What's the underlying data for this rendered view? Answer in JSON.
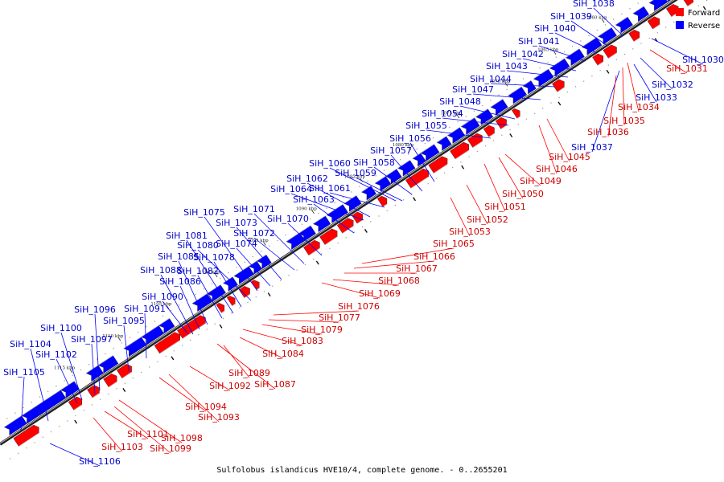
{
  "caption": "Sulfolobus islandicus HVE10/4, complete genome. - 0..2655201",
  "legend": [
    {
      "label": "Forward",
      "color": "#ff0000"
    },
    {
      "label": "Reverse",
      "color": "#0000ff"
    }
  ],
  "colors": {
    "forward": "#ff0000",
    "reverse": "#0000ff",
    "forward_label": "#cc0000",
    "reverse_label": "#0000cc",
    "backbone": "#555555"
  },
  "scale_ticks": [
    "1050 kbp",
    "1055 kbp",
    "1060 kbp",
    "1065 kbp",
    "1070 kbp",
    "1075 kbp",
    "1080 kbp",
    "1085 kbp",
    "1090 kbp",
    "1095 kbp",
    "1100 kbp",
    "1105 kbp",
    "1110 kbp",
    "1115 kbp"
  ],
  "reverse_genes": [
    "SiH_1038",
    "SiH_1039",
    "SiH_1040",
    "SiH_1041",
    "SiH_1042",
    "SiH_1043",
    "SiH_1044",
    "SiH_1047",
    "SiH_1048",
    "SiH_1054",
    "SiH_1055",
    "SiH_1056",
    "SiH_1057",
    "SiH_1058",
    "SiH_1059",
    "SiH_1060",
    "SiH_1061",
    "SiH_1062",
    "SiH_1063",
    "SiH_1064",
    "SiH_1070",
    "SiH_1071",
    "SiH_1072",
    "SiH_1073",
    "SiH_1074",
    "SiH_1075",
    "SiH_1078",
    "SiH_1080",
    "SiH_1081",
    "SiH_1082",
    "SiH_1085",
    "SiH_1086",
    "SiH_1088",
    "SiH_1090",
    "SiH_1091",
    "SiH_1095",
    "SiH_1096",
    "SiH_1097",
    "SiH_1100",
    "SiH_1102",
    "SiH_1104",
    "SiH_1105",
    "SiH_1030",
    "SiH_1032",
    "SiH_1033",
    "SiH_1037",
    "SiH_1106"
  ],
  "forward_genes": [
    "SiH_1031",
    "SiH_1034",
    "SiH_1035",
    "SiH_1036",
    "SiH_1045",
    "SiH_1046",
    "SiH_1049",
    "SiH_1050",
    "SiH_1051",
    "SiH_1052",
    "SiH_1053",
    "SiH_1065",
    "SiH_1066",
    "SiH_1067",
    "SiH_1068",
    "SiH_1069",
    "SiH_1076",
    "SiH_1077",
    "SiH_1079",
    "SiH_1083",
    "SiH_1084",
    "SiH_1087",
    "SiH_1089",
    "SiH_1092",
    "SiH_1093",
    "SiH_1094",
    "SiH_1098",
    "SiH_1099",
    "SiH_1101",
    "SiH_1103"
  ]
}
